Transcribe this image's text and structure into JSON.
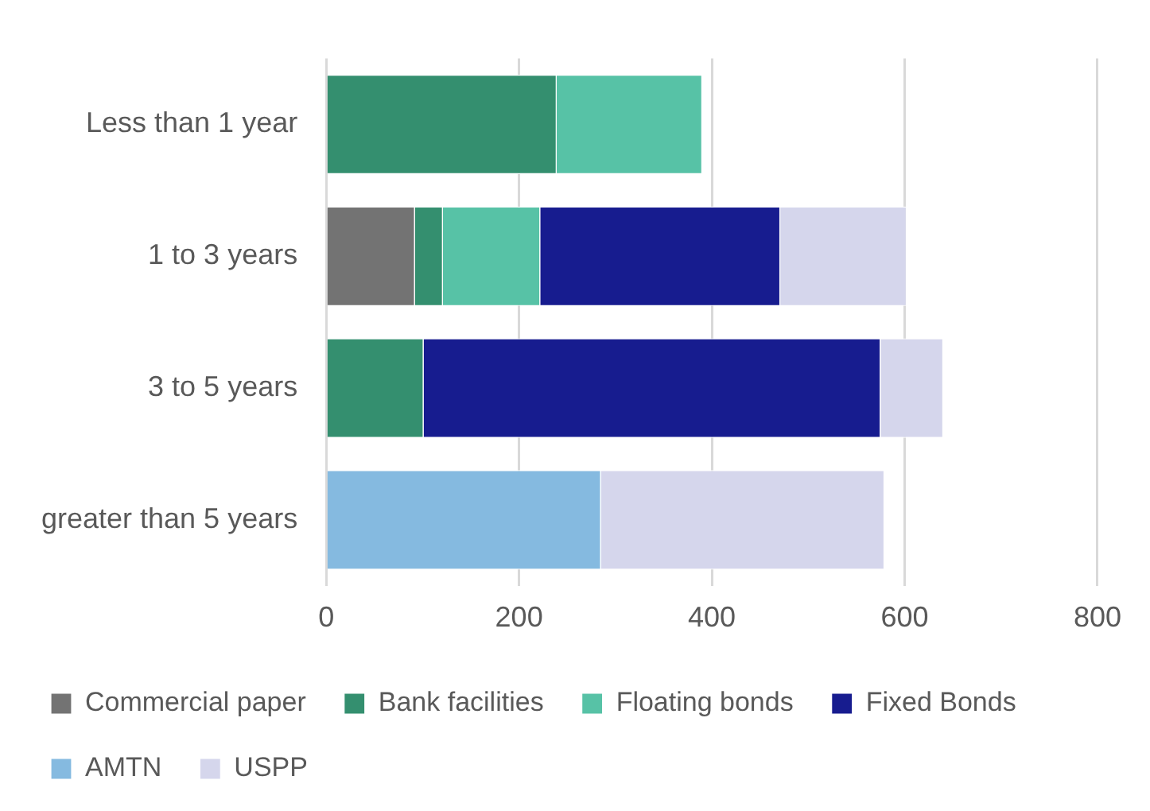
{
  "chart_data": {
    "type": "bar",
    "orientation": "horizontal",
    "stacked": true,
    "categories": [
      "Less than 1 year",
      "1 to 3 years",
      "3 to 5 years",
      "greater than 5 years"
    ],
    "series": [
      {
        "name": "Commercial paper",
        "color": "#737373",
        "values": [
          null,
          92,
          null,
          null
        ]
      },
      {
        "name": "Bank facilities",
        "color": "#348f6f",
        "values": [
          239,
          29,
          101,
          null
        ]
      },
      {
        "name": "Floating bonds",
        "color": "#57c2a6",
        "values": [
          151,
          101,
          null,
          null
        ]
      },
      {
        "name": "Fixed Bonds",
        "color": "#171c8f",
        "values": [
          null,
          249,
          474,
          null
        ]
      },
      {
        "name": "AMTN",
        "color": "#85bae0",
        "values": [
          null,
          null,
          null,
          285
        ]
      },
      {
        "name": "USPP",
        "color": "#d5d6ec",
        "values": [
          null,
          131,
          65,
          294
        ]
      }
    ],
    "xlim": [
      0,
      800
    ],
    "xticks": [
      0,
      200,
      400,
      600,
      800
    ],
    "grid": "x",
    "legend": "bottom"
  }
}
